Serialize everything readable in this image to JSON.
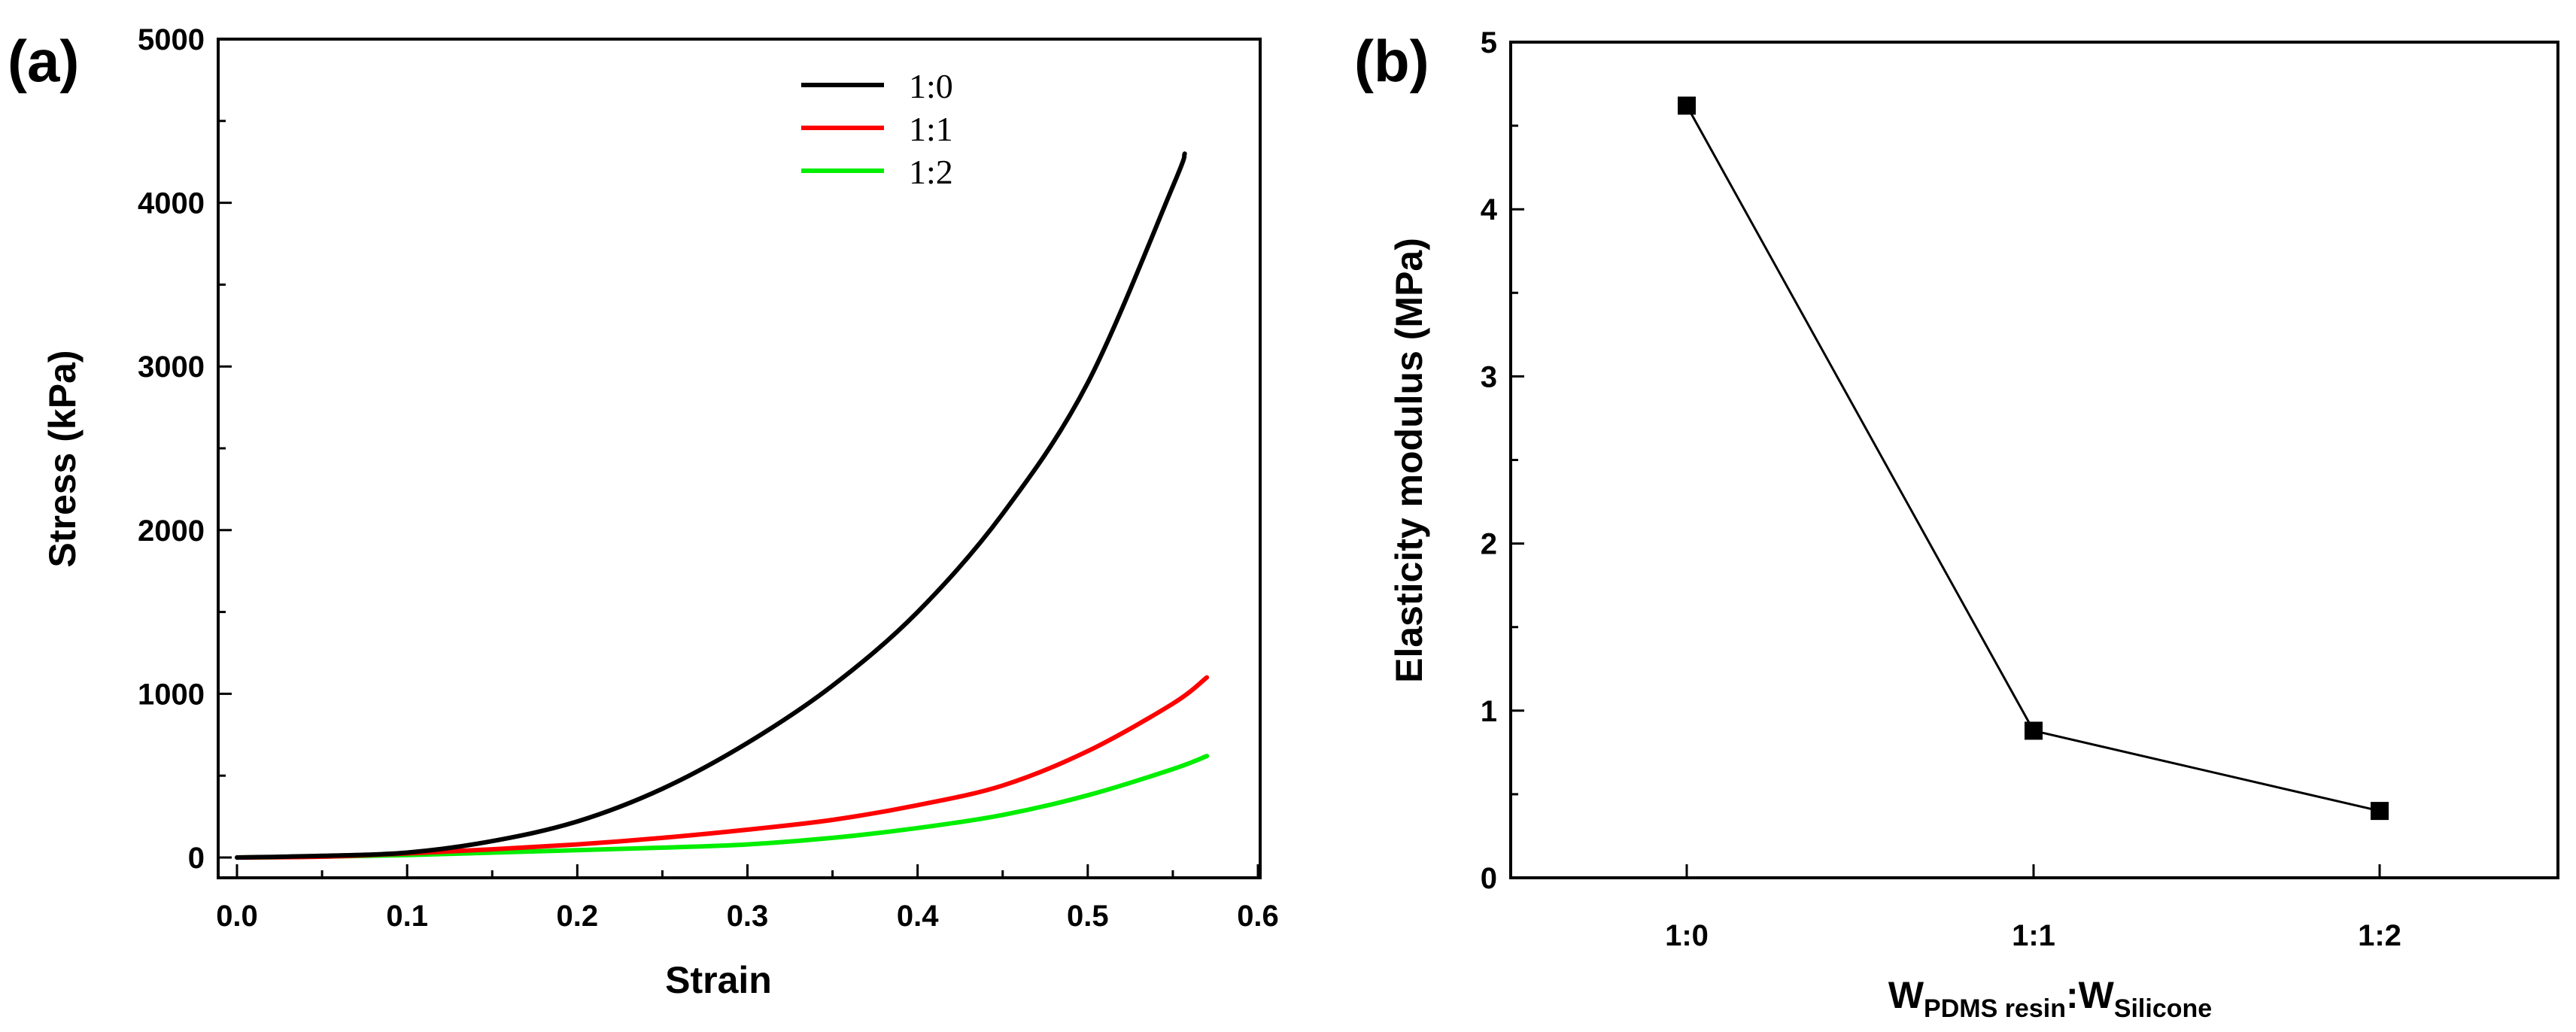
{
  "chart_data": [
    {
      "type": "line",
      "panel_label": "(a)",
      "xlabel": "Strain",
      "ylabel": "Stress (kPa)",
      "xlim": [
        0.0,
        0.6
      ],
      "ylim": [
        0,
        5000
      ],
      "xticks": [
        0.0,
        0.1,
        0.2,
        0.3,
        0.4,
        0.5,
        0.6
      ],
      "xtick_labels": [
        "0.0",
        "0.1",
        "0.2",
        "0.3",
        "0.4",
        "0.5",
        "0.6"
      ],
      "yticks": [
        0,
        1000,
        2000,
        3000,
        4000,
        5000
      ],
      "ytick_labels": [
        "0",
        "1000",
        "2000",
        "3000",
        "4000",
        "5000"
      ],
      "legend_position": "top-center",
      "series": [
        {
          "name": "1:0",
          "color": "#000000",
          "x": [
            0.0,
            0.05,
            0.1,
            0.15,
            0.2,
            0.25,
            0.3,
            0.35,
            0.4,
            0.45,
            0.5,
            0.55,
            0.557
          ],
          "y": [
            0,
            10,
            30,
            100,
            220,
            420,
            700,
            1050,
            1500,
            2100,
            2900,
            4100,
            4300
          ]
        },
        {
          "name": "1:1",
          "color": "#ff0000",
          "x": [
            0.0,
            0.05,
            0.1,
            0.15,
            0.2,
            0.25,
            0.3,
            0.35,
            0.4,
            0.45,
            0.5,
            0.55,
            0.57
          ],
          "y": [
            0,
            5,
            25,
            50,
            80,
            120,
            170,
            230,
            320,
            440,
            650,
            940,
            1100
          ]
        },
        {
          "name": "1:2",
          "color": "#00ee00",
          "x": [
            0.0,
            0.05,
            0.1,
            0.15,
            0.2,
            0.25,
            0.3,
            0.35,
            0.4,
            0.45,
            0.5,
            0.55,
            0.57
          ],
          "y": [
            0,
            5,
            15,
            30,
            45,
            60,
            80,
            120,
            180,
            260,
            380,
            540,
            620
          ]
        }
      ]
    },
    {
      "type": "line",
      "panel_label": "(b)",
      "xlabel": "W",
      "xlabel_sub1": "PDMS resin",
      "xlabel_sep": ":W",
      "xlabel_sub2": "Silicone",
      "ylabel": "Elasticity modulus (MPa)",
      "ylim": [
        0,
        5
      ],
      "yticks": [
        0,
        1,
        2,
        3,
        4,
        5
      ],
      "ytick_labels": [
        "0",
        "1",
        "2",
        "3",
        "4",
        "5"
      ],
      "categories": [
        "1:0",
        "1:1",
        "1:2"
      ],
      "values": [
        4.62,
        0.88,
        0.4
      ],
      "marker": "square",
      "color": "#000000"
    }
  ]
}
